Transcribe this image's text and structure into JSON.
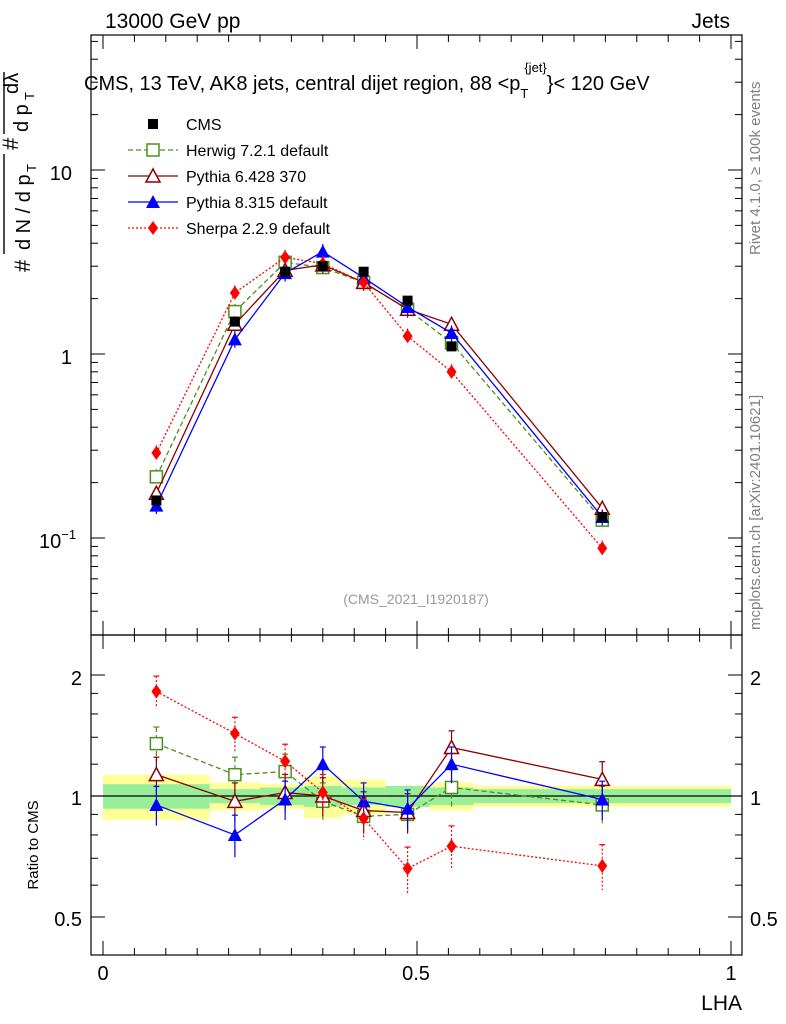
{
  "header": {
    "left": "13000 GeV pp",
    "right": "Jets"
  },
  "side_labels": {
    "rivet": "Rivet 4.1.0, ≥ 100k events",
    "mcplots": "mcplots.cern.ch [arXiv:2401.10621]"
  },
  "chart_data": {
    "type": "scatter",
    "title": "CMS, 13 TeV, AK8 jets, central dijet region, 88 <p_T^jet< 120 GeV",
    "analysis_id": "(CMS_2021_I1920187)",
    "xlabel": "LHA",
    "ylabel_main": "1/(dN/dp_T) · d²N/(dp_T dλ)",
    "ylabel_ratio": "Ratio to CMS",
    "xlim": [
      0,
      1
    ],
    "ylim_main": [
      0.03,
      60
    ],
    "yscale_main": "log",
    "ylim_ratio": [
      0.4,
      2.3
    ],
    "x_ticks": [
      "0",
      "0.5",
      "1"
    ],
    "y_ticks_main": [
      "10",
      "1",
      "10^-1"
    ],
    "y_ticks_ratio": [
      "2",
      "1",
      "0.5"
    ],
    "x": [
      0.085,
      0.21,
      0.29,
      0.35,
      0.415,
      0.485,
      0.555,
      0.795
    ],
    "data_bins": [
      [
        0.0,
        0.17
      ],
      [
        0.17,
        0.25
      ],
      [
        0.25,
        0.32
      ],
      [
        0.32,
        0.38
      ],
      [
        0.38,
        0.45
      ],
      [
        0.45,
        0.52
      ],
      [
        0.52,
        0.59
      ],
      [
        0.59,
        1.0
      ]
    ],
    "data_stat_band": [
      0.07,
      0.04,
      0.05,
      0.06,
      0.05,
      0.06,
      0.05,
      0.04
    ],
    "data_total_band": [
      0.13,
      0.08,
      0.07,
      0.12,
      0.1,
      0.06,
      0.08,
      0.06
    ],
    "series": [
      {
        "name": "CMS",
        "style": "data",
        "color": "#000000",
        "values": [
          0.16,
          1.5,
          2.8,
          3.0,
          2.8,
          1.95,
          1.1,
          0.13
        ],
        "ratio": [
          1.0,
          1.0,
          1.0,
          1.0,
          1.0,
          1.0,
          1.0,
          1.0
        ]
      },
      {
        "name": "Herwig 7.2.1 default",
        "style": "dashed-open-square",
        "color": "#4d8f1a",
        "values": [
          0.215,
          1.7,
          3.15,
          2.95,
          2.45,
          1.75,
          1.15,
          0.125
        ],
        "ratio": [
          1.35,
          1.13,
          1.15,
          0.97,
          0.89,
          0.9,
          1.05,
          0.95
        ]
      },
      {
        "name": "Pythia 6.428 370",
        "style": "solid-open-triangle",
        "color": "#8b0000",
        "values": [
          0.175,
          1.45,
          2.85,
          3.05,
          2.45,
          1.75,
          1.45,
          0.145
        ],
        "ratio": [
          1.13,
          0.97,
          1.02,
          1.0,
          0.92,
          0.91,
          1.32,
          1.1
        ]
      },
      {
        "name": "Pythia 8.315 default",
        "style": "solid-filled-triangle",
        "color": "#0000ff",
        "values": [
          0.15,
          1.2,
          2.75,
          3.6,
          2.6,
          1.8,
          1.3,
          0.13
        ],
        "ratio": [
          0.95,
          0.8,
          0.98,
          1.2,
          0.97,
          0.93,
          1.2,
          0.98
        ]
      },
      {
        "name": "Sherpa 2.2.9 default",
        "style": "dotted-filled-diamond",
        "color": "#ff0000",
        "values": [
          0.29,
          2.15,
          3.35,
          3.1,
          2.45,
          1.25,
          0.8,
          0.088
        ],
        "ratio": [
          1.82,
          1.43,
          1.22,
          1.02,
          0.88,
          0.66,
          0.75,
          0.67
        ]
      }
    ]
  }
}
